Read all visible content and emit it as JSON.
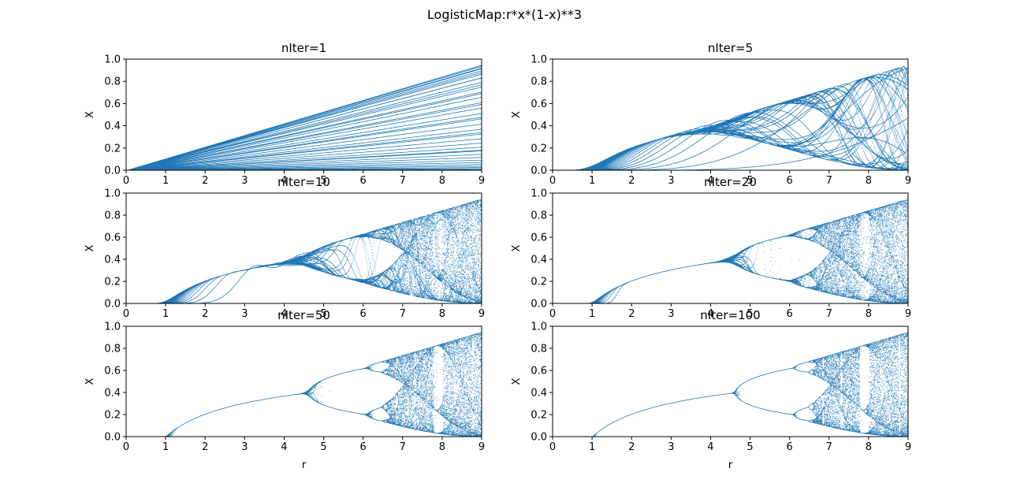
{
  "figure": {
    "suptitle": "LogisticMap:r*x*(1-x)**3"
  },
  "style": {
    "series_color": "#1f77b4",
    "axis_color": "#000000",
    "background": "#ffffff"
  },
  "chart_data": [
    {
      "type": "scatter",
      "title": "nIter=1",
      "xlabel": "",
      "ylabel": "X",
      "xlim": [
        0,
        9
      ],
      "ylim": [
        0,
        1
      ],
      "xticks": [
        "0",
        "1",
        "2",
        "3",
        "4",
        "5",
        "6",
        "7",
        "8",
        "9"
      ],
      "yticks": [
        "0.0",
        "0.2",
        "0.4",
        "0.6",
        "0.8",
        "1.0"
      ],
      "model": "x_{n+1} = r*x_n*(1-x_n)^3",
      "iterations": 1,
      "grid": false
    },
    {
      "type": "scatter",
      "title": "nIter=5",
      "xlabel": "",
      "ylabel": "X",
      "xlim": [
        0,
        9
      ],
      "ylim": [
        0,
        1
      ],
      "xticks": [
        "0",
        "1",
        "2",
        "3",
        "4",
        "5",
        "6",
        "7",
        "8",
        "9"
      ],
      "yticks": [
        "0.0",
        "0.2",
        "0.4",
        "0.6",
        "0.8",
        "1.0"
      ],
      "model": "x_{n+1} = r*x_n*(1-x_n)^3",
      "iterations": 5,
      "grid": false
    },
    {
      "type": "scatter",
      "title": "nIter=10",
      "xlabel": "",
      "ylabel": "X",
      "xlim": [
        0,
        9
      ],
      "ylim": [
        0,
        1
      ],
      "xticks": [
        "0",
        "1",
        "2",
        "3",
        "4",
        "5",
        "6",
        "7",
        "8",
        "9"
      ],
      "yticks": [
        "0.0",
        "0.2",
        "0.4",
        "0.6",
        "0.8",
        "1.0"
      ],
      "model": "x_{n+1} = r*x_n*(1-x_n)^3",
      "iterations": 10,
      "grid": false
    },
    {
      "type": "scatter",
      "title": "nIter=20",
      "xlabel": "",
      "ylabel": "X",
      "xlim": [
        0,
        9
      ],
      "ylim": [
        0,
        1
      ],
      "xticks": [
        "0",
        "1",
        "2",
        "3",
        "4",
        "5",
        "6",
        "7",
        "8",
        "9"
      ],
      "yticks": [
        "0.0",
        "0.2",
        "0.4",
        "0.6",
        "0.8",
        "1.0"
      ],
      "model": "x_{n+1} = r*x_n*(1-x_n)^3",
      "iterations": 20,
      "grid": false
    },
    {
      "type": "scatter",
      "title": "nIter=50",
      "xlabel": "r",
      "ylabel": "X",
      "xlim": [
        0,
        9
      ],
      "ylim": [
        0,
        1
      ],
      "xticks": [
        "0",
        "1",
        "2",
        "3",
        "4",
        "5",
        "6",
        "7",
        "8",
        "9"
      ],
      "yticks": [
        "0.0",
        "0.2",
        "0.4",
        "0.6",
        "0.8",
        "1.0"
      ],
      "model": "x_{n+1} = r*x_n*(1-x_n)^3",
      "iterations": 50,
      "grid": false
    },
    {
      "type": "scatter",
      "title": "nIter=100",
      "xlabel": "r",
      "ylabel": "X",
      "xlim": [
        0,
        9
      ],
      "ylim": [
        0,
        1
      ],
      "xticks": [
        "0",
        "1",
        "2",
        "3",
        "4",
        "5",
        "6",
        "7",
        "8",
        "9"
      ],
      "yticks": [
        "0.0",
        "0.2",
        "0.4",
        "0.6",
        "0.8",
        "1.0"
      ],
      "model": "x_{n+1} = r*x_n*(1-x_n)^3",
      "iterations": 100,
      "grid": false
    }
  ]
}
